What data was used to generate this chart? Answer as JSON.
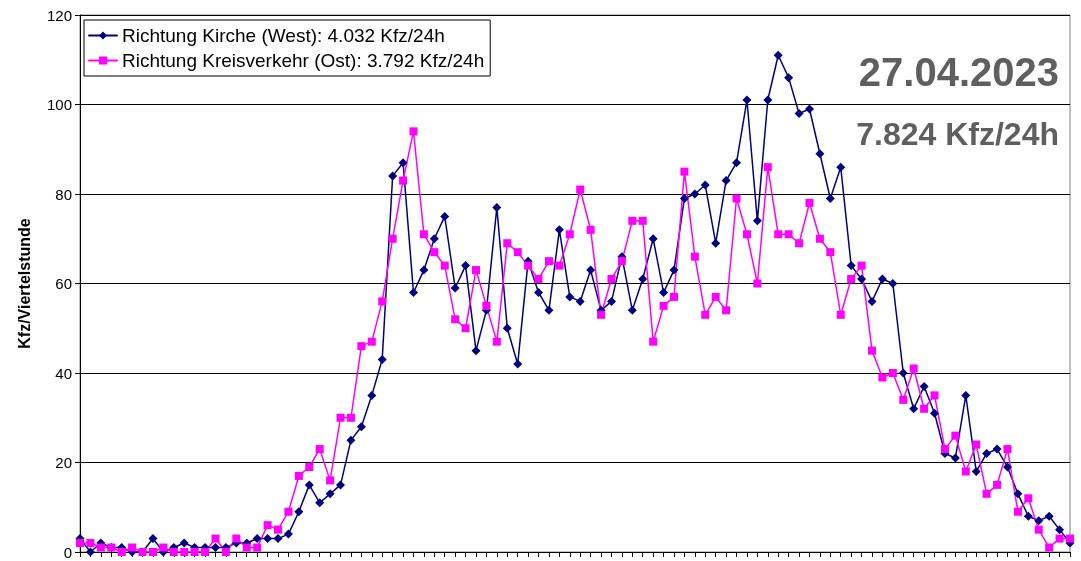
{
  "chart_data": {
    "type": "line",
    "ylabel": "Kfz/Viertelstunde",
    "annotations": [
      "27.04.2023",
      "7.824 Kfz/24h"
    ],
    "categories": [
      null,
      null,
      null,
      null,
      null,
      null,
      null,
      null,
      null,
      null,
      null,
      null,
      null,
      null,
      null,
      null,
      null,
      null,
      null,
      null,
      null,
      null,
      null,
      null,
      null,
      null,
      null,
      null,
      null,
      null,
      null,
      null,
      null,
      null,
      null,
      null,
      null,
      null,
      null,
      null,
      null,
      null,
      null,
      null,
      null,
      null,
      null,
      null,
      null,
      null,
      null,
      null,
      null,
      null,
      null,
      null,
      null,
      null,
      null,
      null,
      null,
      null,
      null,
      null,
      null,
      null,
      null,
      null,
      null,
      null,
      null,
      null,
      null,
      null,
      null,
      null,
      null,
      null,
      null,
      null,
      null,
      null,
      null,
      null,
      null,
      null,
      null,
      null,
      null,
      null,
      null,
      null,
      null,
      null,
      null,
      null
    ],
    "series": [
      {
        "name": "Richtung Kirche (West): 4.032 Kfz/24h",
        "color": "#000080",
        "marker": "diamond",
        "values": [
          3,
          0,
          2,
          1,
          1,
          0,
          0,
          3,
          0,
          1,
          2,
          1,
          1,
          1,
          1,
          2,
          2,
          3,
          3,
          3,
          4,
          9,
          15,
          11,
          13,
          15,
          25,
          28,
          35,
          43,
          84,
          87,
          58,
          63,
          70,
          75,
          59,
          64,
          45,
          54,
          77,
          50,
          42,
          65,
          58,
          54,
          72,
          57,
          56,
          63,
          54,
          56,
          66,
          54,
          61,
          70,
          58,
          63,
          79,
          80,
          82,
          69,
          83,
          87,
          101,
          74,
          101,
          111,
          106,
          98,
          99,
          89,
          79,
          86,
          64,
          61,
          56,
          61,
          60,
          40,
          32,
          37,
          31,
          22,
          21,
          35,
          18,
          22,
          23,
          19,
          13,
          8,
          7,
          8,
          5,
          2
        ]
      },
      {
        "name": "Richtung Kreisverkehr (Ost): 3.792 Kfz/24h",
        "color": "#ff00ff",
        "marker": "square",
        "values": [
          2,
          2,
          1,
          1,
          0,
          1,
          0,
          0,
          1,
          0,
          0,
          0,
          0,
          3,
          0,
          3,
          1,
          1,
          6,
          5,
          9,
          17,
          19,
          23,
          16,
          30,
          30,
          46,
          47,
          56,
          70,
          83,
          94,
          71,
          67,
          64,
          52,
          50,
          63,
          55,
          47,
          69,
          67,
          64,
          61,
          65,
          64,
          71,
          81,
          72,
          53,
          61,
          65,
          74,
          74,
          47,
          55,
          57,
          85,
          66,
          53,
          57,
          54,
          79,
          71,
          60,
          86,
          71,
          71,
          69,
          78,
          70,
          67,
          53,
          61,
          64,
          45,
          39,
          40,
          34,
          41,
          32,
          35,
          23,
          26,
          18,
          24,
          13,
          15,
          23,
          9,
          12,
          5,
          1,
          3,
          3
        ]
      }
    ],
    "ylim": [
      0,
      120
    ],
    "yticks": [
      0,
      20,
      40,
      60,
      80,
      100,
      120
    ],
    "grid": "y",
    "legend": "top left",
    "tick_labels": "y",
    "line_style": "solid"
  }
}
